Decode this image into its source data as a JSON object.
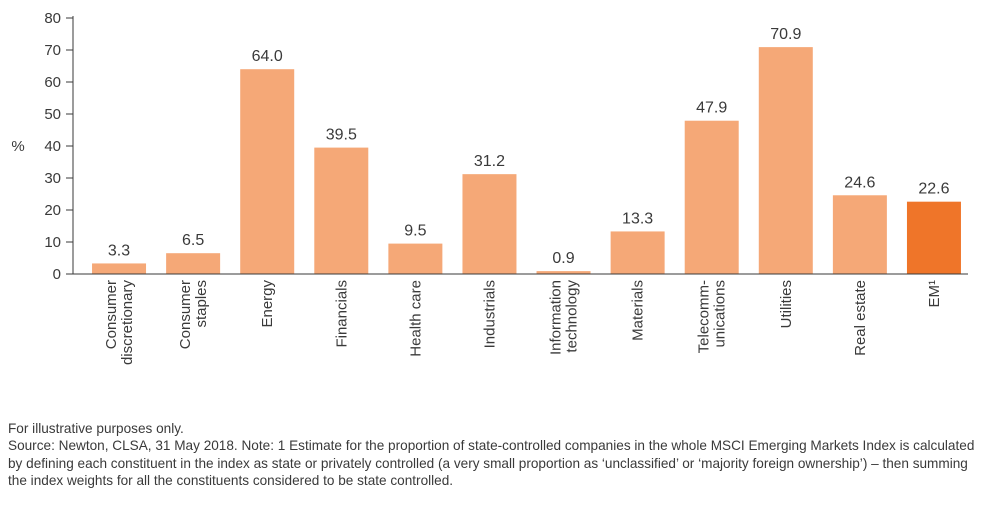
{
  "chart_data": {
    "type": "bar",
    "categories": [
      [
        "Consumer",
        "discretionary"
      ],
      [
        "Consumer",
        "staples"
      ],
      [
        "Energy"
      ],
      [
        "Financials"
      ],
      [
        "Health care"
      ],
      [
        "Industrials"
      ],
      [
        "Information",
        "technology"
      ],
      [
        "Materials"
      ],
      [
        "Telecomm-",
        "unications"
      ],
      [
        "Utilities"
      ],
      [
        "Real estate"
      ],
      [
        "EM¹"
      ]
    ],
    "values": [
      3.3,
      6.5,
      64.0,
      39.5,
      9.5,
      31.2,
      0.9,
      13.3,
      47.9,
      70.9,
      24.6,
      22.6
    ],
    "value_labels": [
      "3.3",
      "6.5",
      "64.0",
      "39.5",
      "9.5",
      "31.2",
      "0.9",
      "13.3",
      "47.9",
      "70.9",
      "24.6",
      "22.6"
    ],
    "highlight_index": 11,
    "ylabel": "%",
    "ylim": [
      0,
      80
    ],
    "yticks": [
      0,
      10,
      20,
      30,
      40,
      50,
      60,
      70,
      80
    ],
    "grid": false,
    "colors": {
      "bar": "#f5a877",
      "highlight": "#ef7529",
      "axis": "#3a3a3a"
    }
  },
  "footnotes": {
    "line1": "For illustrative purposes only.",
    "line2": "Source: Newton, CLSA, 31 May 2018. Note: 1 Estimate for the proportion of state-controlled companies in the whole MSCI Emerging Markets Index is calculated by defining each constituent in the index as state or privately controlled (a very small proportion as ‘unclassified’ or ‘majority foreign ownership’) – then summing the index weights for all the constituents considered to be state controlled."
  }
}
